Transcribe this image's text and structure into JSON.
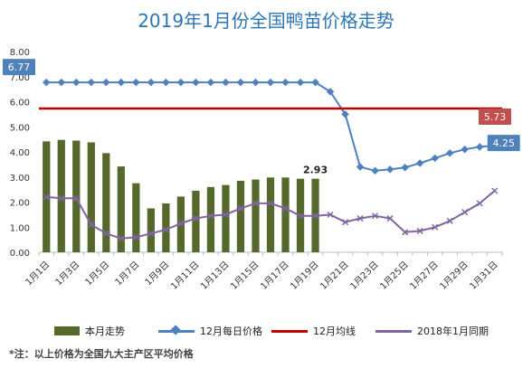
{
  "chart_data": {
    "type": "bar+line",
    "title": "2019年1月份全国鸭苗价格走势",
    "categories": [
      "1月1日",
      "1月2日",
      "1月3日",
      "1月4日",
      "1月5日",
      "1月6日",
      "1月7日",
      "1月8日",
      "1月9日",
      "1月10日",
      "1月11日",
      "1月12日",
      "1月13日",
      "1月14日",
      "1月15日",
      "1月16日",
      "1月17日",
      "1月18日",
      "1月19日",
      "1月20日",
      "1月21日",
      "1月22日",
      "1月23日",
      "1月24日",
      "1月25日",
      "1月26日",
      "1月27日",
      "1月28日",
      "1月29日",
      "1月30日",
      "1月31日"
    ],
    "x_tick_labels": [
      "1月1日",
      "1月3日",
      "1月5日",
      "1月7日",
      "1月9日",
      "1月11日",
      "1月13日",
      "1月15日",
      "1月17日",
      "1月19日",
      "1月21日",
      "1月23日",
      "1月25日",
      "1月27日",
      "1月29日",
      "1月31日"
    ],
    "ylim": [
      0,
      8
    ],
    "y_tick_labels": [
      "0.00",
      "1.00",
      "2.00",
      "3.00",
      "4.00",
      "5.00",
      "6.00",
      "7.00",
      "8.00"
    ],
    "grid": false,
    "legend_position": "bottom",
    "series": [
      {
        "name": "本月走势",
        "kind": "bar",
        "color": "#55692c",
        "values": [
          4.42,
          4.48,
          4.45,
          4.38,
          3.95,
          3.42,
          2.75,
          1.75,
          1.95,
          2.22,
          2.45,
          2.6,
          2.68,
          2.85,
          2.9,
          2.98,
          2.98,
          2.93,
          2.93,
          null,
          null,
          null,
          null,
          null,
          null,
          null,
          null,
          null,
          null,
          null,
          null
        ]
      },
      {
        "name": "12月每日价格",
        "kind": "line",
        "color": "#4f81bd",
        "marker": "diamond",
        "values": [
          6.77,
          6.77,
          6.77,
          6.77,
          6.77,
          6.77,
          6.77,
          6.77,
          6.77,
          6.77,
          6.77,
          6.77,
          6.77,
          6.77,
          6.77,
          6.77,
          6.77,
          6.77,
          6.77,
          6.4,
          5.5,
          3.4,
          3.25,
          3.3,
          3.38,
          3.55,
          3.75,
          3.95,
          4.1,
          4.2,
          4.25
        ]
      },
      {
        "name": "12月均线",
        "kind": "line",
        "color": "#c00000",
        "values": [
          5.73,
          5.73,
          5.73,
          5.73,
          5.73,
          5.73,
          5.73,
          5.73,
          5.73,
          5.73,
          5.73,
          5.73,
          5.73,
          5.73,
          5.73,
          5.73,
          5.73,
          5.73,
          5.73,
          5.73,
          5.73,
          5.73,
          5.73,
          5.73,
          5.73,
          5.73,
          5.73,
          5.73,
          5.73,
          5.73,
          5.73
        ]
      },
      {
        "name": "2018年1月同期",
        "kind": "line",
        "color": "#8064a2",
        "marker": "x",
        "values": [
          2.2,
          2.15,
          2.15,
          1.1,
          0.75,
          0.55,
          0.6,
          0.75,
          0.9,
          1.15,
          1.35,
          1.45,
          1.5,
          1.75,
          1.95,
          1.95,
          1.75,
          1.45,
          1.45,
          1.5,
          1.2,
          1.35,
          1.45,
          1.35,
          0.8,
          0.85,
          1.0,
          1.25,
          1.6,
          1.95,
          2.45
        ]
      }
    ],
    "annotations": [
      {
        "text": "6.77",
        "series": "12月每日价格",
        "point": "1月1日",
        "style": "callout",
        "color": "#4f81bd"
      },
      {
        "text": "5.73",
        "series": "12月均线",
        "point": "1月31日",
        "style": "callout",
        "color": "#c0504d"
      },
      {
        "text": "4.25",
        "series": "12月每日价格",
        "point": "1月31日",
        "style": "callout",
        "color": "#4f81bd"
      },
      {
        "text": "2.93",
        "series": "本月走势",
        "point": "1月19日",
        "style": "label",
        "color": "#222222"
      }
    ]
  },
  "footnote": "*注：以上价格为全国九大主产区平均价格"
}
